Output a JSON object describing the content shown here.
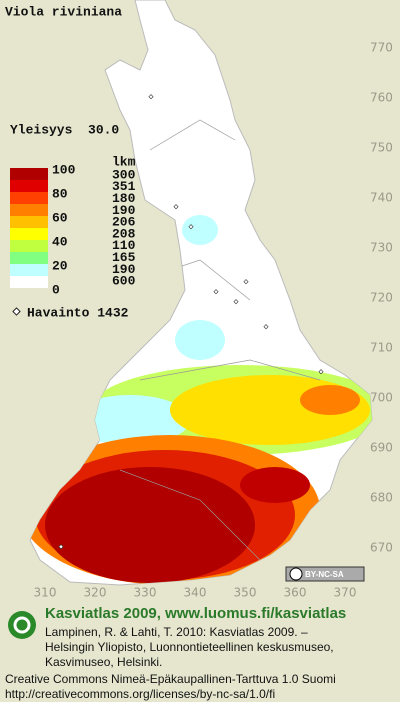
{
  "title": "Viola riviniana",
  "frequency": "Yleisyys  30.0",
  "legend": {
    "scale_labels": [
      100,
      80,
      60,
      40,
      20,
      0
    ],
    "count_header": "lkm",
    "counts": [
      300,
      351,
      180,
      190,
      206,
      208,
      110,
      165,
      190,
      600
    ],
    "observations": "Havainto 1432"
  },
  "map_grid": {
    "northing": [
      770,
      760,
      750,
      740,
      730,
      720,
      710,
      700,
      690,
      680,
      670
    ],
    "easting": [
      310,
      320,
      330,
      340,
      350,
      360,
      370
    ]
  },
  "license_badge": "BY-NC-SA",
  "footer": {
    "heading": "Kasviatlas 2009, www.luomus.fi/kasviatlas",
    "citation": [
      "Lampinen, R. & Lahti, T. 2010: Kasviatlas 2009. –",
      "Helsingin Yliopisto, Luonnontieteellinen keskusmuseo,",
      "Kasvimuseo, Helsinki."
    ],
    "license": [
      "Creative Commons Nimeä-Epäkaupallinen-Tarttuva 1.0 Suomi",
      "http://creativecommons.org/licenses/by-nc-sa/1.0/fi"
    ]
  }
}
